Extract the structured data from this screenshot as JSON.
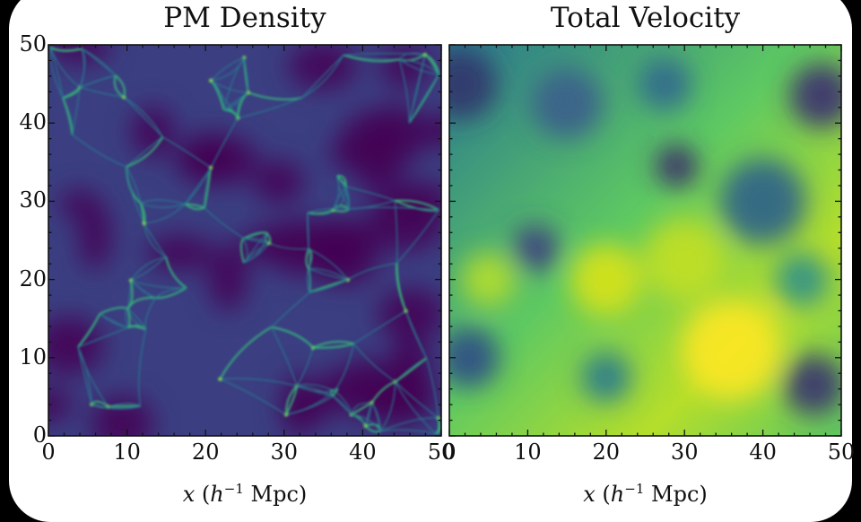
{
  "chart_data": [
    {
      "type": "heatmap",
      "title": "PM Density",
      "xlabel": "x (h^-1 Mpc)",
      "ylabel": "",
      "xlim": [
        0,
        50
      ],
      "ylim": [
        0,
        50
      ],
      "x_ticks": [
        0,
        10,
        20,
        30,
        40,
        50
      ],
      "y_ticks": [
        0,
        10,
        20,
        30,
        40,
        50
      ],
      "colormap": "viridis",
      "description_values": "cosmic-web filaments on dark voids"
    },
    {
      "type": "heatmap",
      "title": "Total Velocity",
      "xlabel": "x (h^-1 Mpc)",
      "ylabel": "",
      "xlim": [
        0,
        50
      ],
      "ylim": [
        0,
        50
      ],
      "x_ticks": [
        0,
        10,
        20,
        30,
        40,
        50
      ],
      "colormap": "viridis",
      "description_values": "smooth velocity magnitude field"
    }
  ],
  "xlabel_parts": {
    "var": "x",
    "open": " (",
    "h": "h",
    "exp": "−1",
    "unit": " Mpc)"
  },
  "colors": {
    "dark": "#440154",
    "mid": "#3b528b",
    "teal": "#21918c",
    "green": "#5ec962",
    "yellow": "#fde725"
  }
}
